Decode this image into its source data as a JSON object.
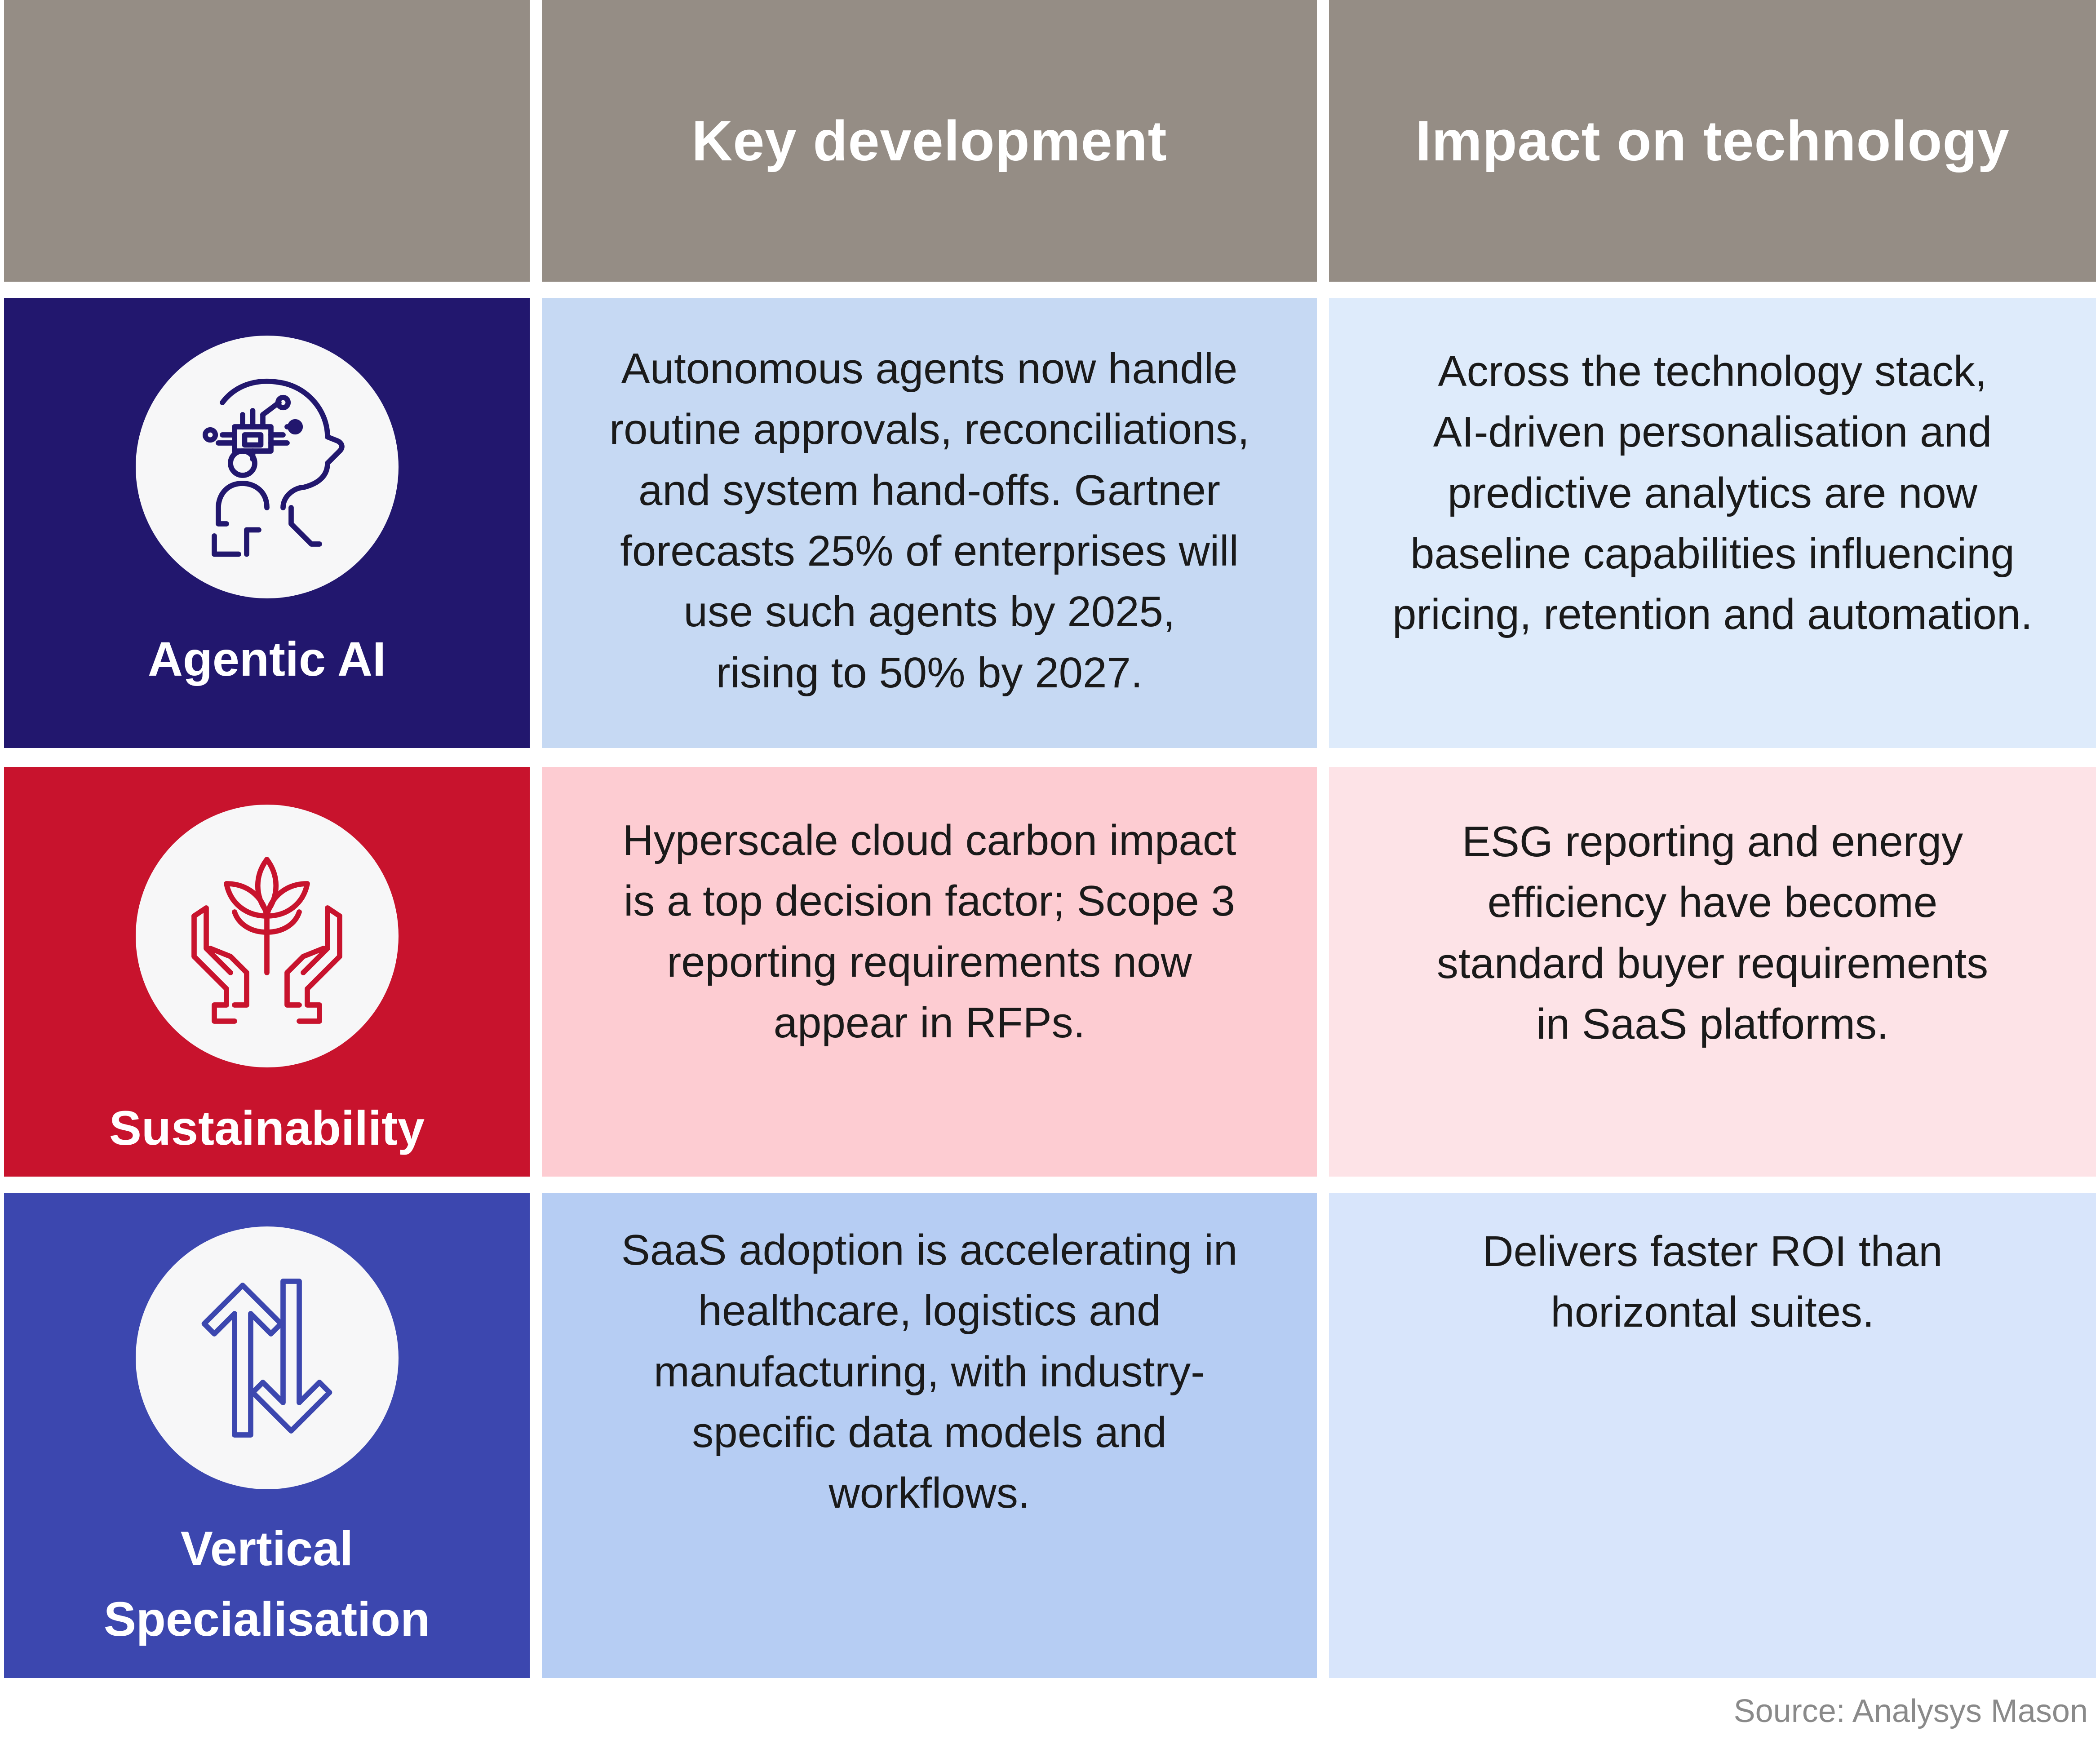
{
  "header": {
    "col1": "Key development",
    "col2": "Impact on technology"
  },
  "rows": [
    {
      "label": "Agentic AI",
      "icon": "ai-head-chip-icon",
      "development": "Autonomous agents now handle\nroutine approvals, reconciliations,\nand system hand-offs. Gartner\nforecasts 25% of enterprises will\nuse such agents by 2025,\nrising to 50% by 2027.",
      "impact": "Across the technology stack,\nAI-driven personalisation and\npredictive analytics are now\nbaseline capabilities influencing\npricing, retention and automation."
    },
    {
      "label": "Sustainability",
      "icon": "hands-plant-icon",
      "development": "Hyperscale cloud carbon impact\nis a top decision factor; Scope 3\nreporting requirements now\nappear in RFPs.",
      "impact": "ESG reporting and energy\nefficiency have become\nstandard buyer requirements\nin SaaS platforms."
    },
    {
      "label": "Vertical Specialisation",
      "icon": "up-down-arrows-icon",
      "development": "SaaS adoption is accelerating in\nhealthcare, logistics and\nmanufacturing, with industry-\nspecific data models and\nworkflows.",
      "impact": "Delivers faster ROI than\nhorizontal suites."
    }
  ],
  "source": "Source: Analysys Mason",
  "colors": {
    "header": "#958d85",
    "agentic_label": "#22176e",
    "agentic_dev": "#c6d9f3",
    "agentic_impact": "#deebfb",
    "sustain_label": "#c8132d",
    "sustain_dev": "#fdccd2",
    "sustain_impact": "#fde3e7",
    "vertical_label": "#3c47af",
    "vertical_dev": "#b6cdf3",
    "vertical_impact": "#d8e5fb"
  }
}
